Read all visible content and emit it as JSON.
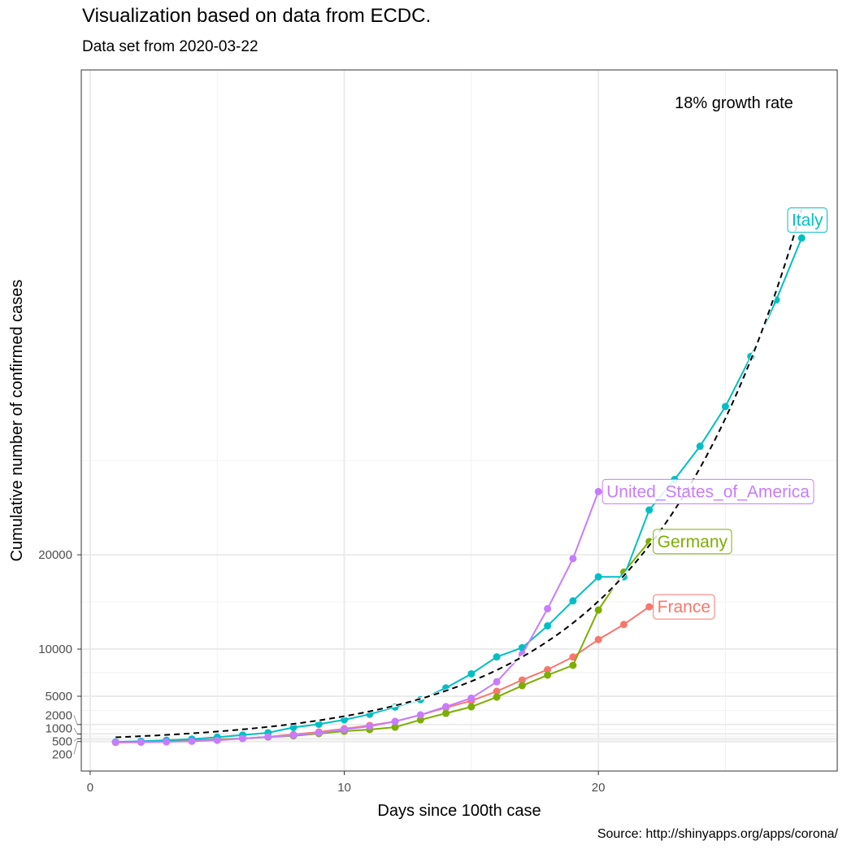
{
  "chart_data": {
    "type": "line",
    "title": "Visualization based on data from ECDC.",
    "subtitle": "Data set from 2020-03-22",
    "caption": "Source: http://shinyapps.org/apps/corona/",
    "xlabel": "Days since 100th case",
    "ylabel": "Cumulative number of confirmed cases",
    "xlim": [
      -0.35,
      29.4
    ],
    "ylim": [
      -2930,
      71400
    ],
    "x_ticks": [
      0,
      10,
      20
    ],
    "y_ticks": [
      200,
      500,
      1000,
      2000,
      5000,
      10000,
      20000
    ],
    "grid": true,
    "annotation": "18% growth rate",
    "trend": {
      "growth_rate": 0.18,
      "base": 550,
      "x_range": [
        1,
        28
      ],
      "style": "dashed",
      "color": "#000000"
    },
    "series": [
      {
        "name": "France",
        "color": "#F8766D",
        "x": [
          1,
          2,
          3,
          4,
          5,
          6,
          7,
          8,
          9,
          10,
          11,
          12,
          13,
          14,
          15,
          16,
          17,
          18,
          19,
          20,
          21,
          22
        ],
        "y": [
          130,
          190,
          240,
          300,
          430,
          520,
          690,
          950,
          1210,
          1550,
          1900,
          2330,
          3020,
          3790,
          4510,
          5520,
          6720,
          7820,
          9160,
          11010,
          12610,
          14480
        ]
      },
      {
        "name": "Germany",
        "color": "#7CAE00",
        "x": [
          1,
          2,
          3,
          4,
          5,
          6,
          7,
          8,
          9,
          10,
          11,
          12,
          13,
          14,
          15,
          16,
          17,
          18,
          19,
          20,
          21,
          22
        ],
        "y": [
          130,
          160,
          200,
          260,
          400,
          520,
          670,
          800,
          1040,
          1290,
          1470,
          1720,
          2500,
          3190,
          3880,
          4910,
          6120,
          7240,
          8280,
          14140,
          18160,
          21400
        ]
      },
      {
        "name": "Italy",
        "color": "#00BFC4",
        "x": [
          1,
          2,
          3,
          4,
          5,
          6,
          7,
          8,
          9,
          10,
          11,
          12,
          13,
          14,
          15,
          16,
          17,
          18,
          19,
          20,
          21,
          22,
          23,
          24,
          25,
          26,
          27,
          28
        ],
        "y": [
          155,
          229,
          322,
          453,
          655,
          888,
          1128,
          1694,
          2036,
          2502,
          3089,
          3858,
          4636,
          5883,
          7375,
          9172,
          10149,
          12462,
          15113,
          17660,
          17660,
          24747,
          27980,
          31506,
          35713,
          41035,
          47021,
          53578
        ]
      },
      {
        "name": "United_States_of_America",
        "color": "#C77CFF",
        "x": [
          1,
          2,
          3,
          4,
          5,
          6,
          7,
          8,
          9,
          10,
          11,
          12,
          13,
          14,
          15,
          16,
          17,
          18,
          19,
          20
        ],
        "y": [
          100,
          125,
          160,
          230,
          330,
          520,
          690,
          860,
          1120,
          1470,
          1810,
          2330,
          3020,
          3900,
          4800,
          6530,
          9460,
          14280,
          19590,
          26700
        ]
      }
    ]
  }
}
